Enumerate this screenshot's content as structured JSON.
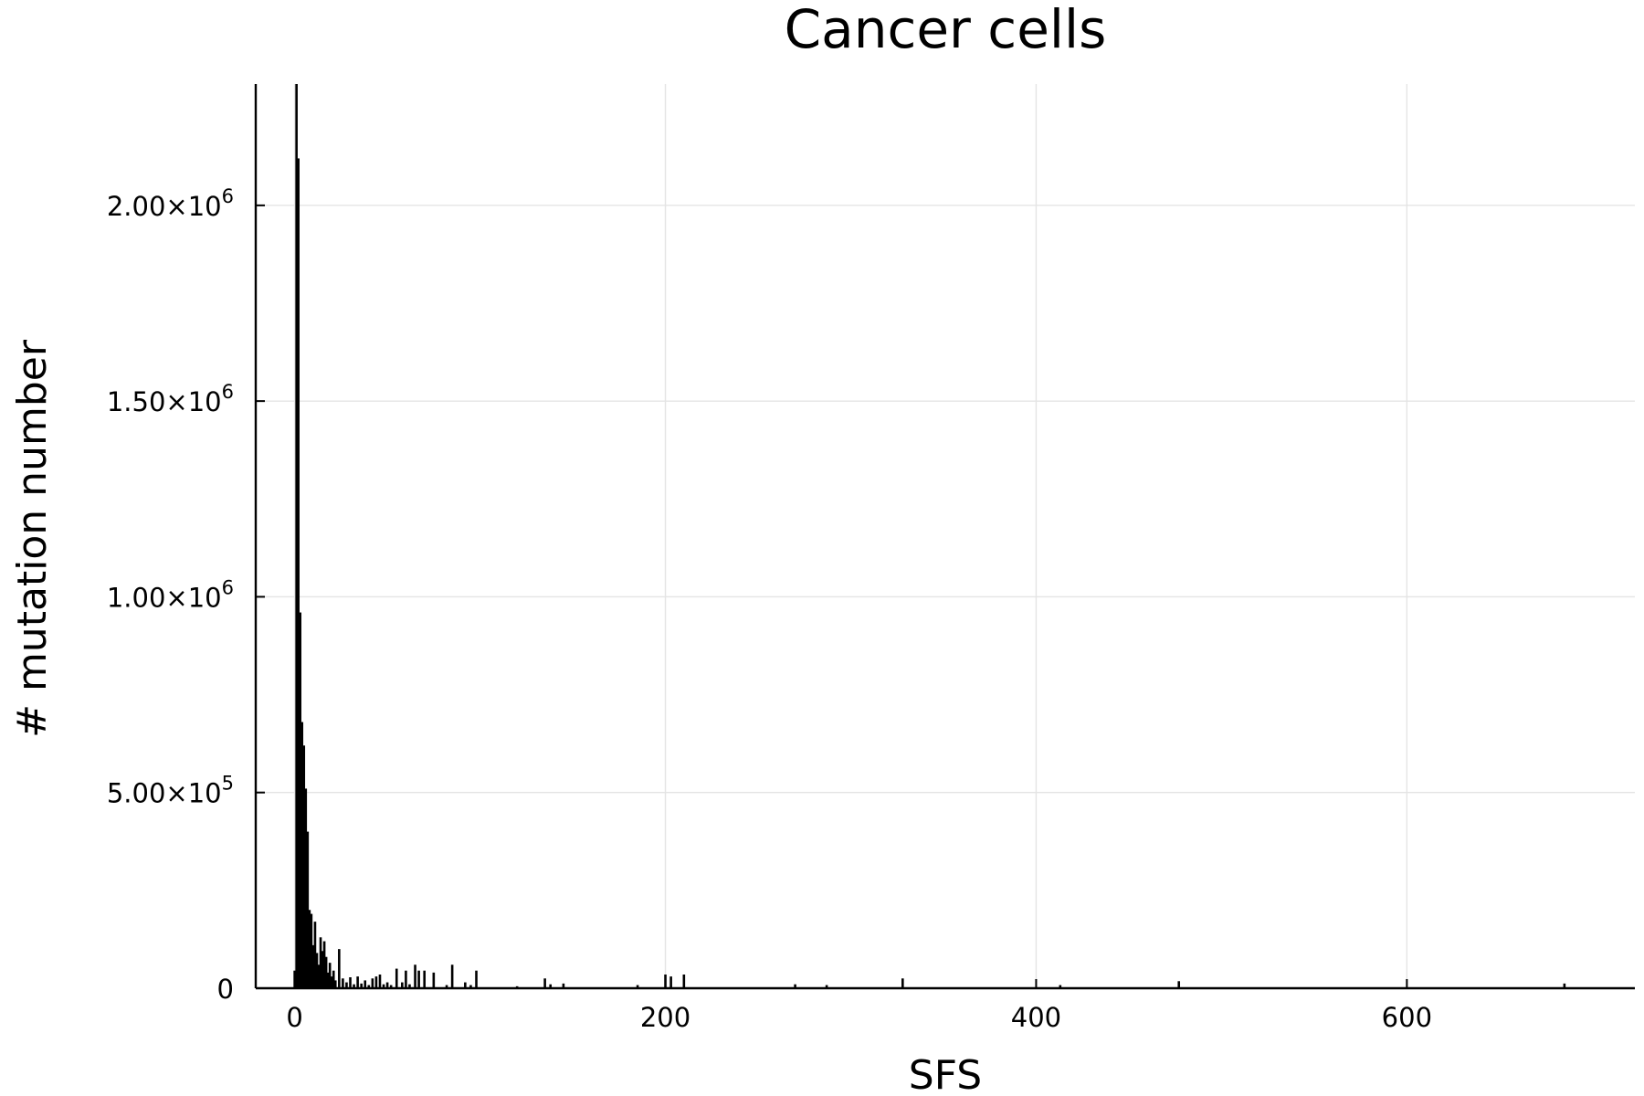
{
  "chart_data": {
    "type": "bar",
    "title": "Cancer cells",
    "xlabel": "SFS",
    "ylabel": "# mutation number",
    "xlim": [
      -21,
      723
    ],
    "ylim": [
      0,
      2310000
    ],
    "grid": true,
    "legend": "none",
    "bar_color": "#000000",
    "x_ticks": [
      {
        "value": 0,
        "label": "0"
      },
      {
        "value": 200,
        "label": "200"
      },
      {
        "value": 400,
        "label": "400"
      },
      {
        "value": 600,
        "label": "600"
      }
    ],
    "y_ticks": [
      {
        "value": 0,
        "mantissa": "0",
        "exponent": ""
      },
      {
        "value": 500000,
        "mantissa": "5.00×10",
        "exponent": "5"
      },
      {
        "value": 1000000,
        "mantissa": "1.00×10",
        "exponent": "6"
      },
      {
        "value": 1500000,
        "mantissa": "1.50×10",
        "exponent": "6"
      },
      {
        "value": 2000000,
        "mantissa": "2.00×10",
        "exponent": "6"
      }
    ],
    "series": [
      {
        "x": [
          0,
          1,
          2,
          3,
          4,
          5,
          6,
          7,
          8,
          9,
          10,
          11,
          12,
          13,
          14,
          15,
          16,
          17,
          18,
          19,
          20,
          21,
          22,
          24,
          26,
          28,
          30,
          32,
          34,
          36,
          38,
          40,
          42,
          44,
          46,
          48,
          50,
          52,
          55,
          58,
          60,
          62,
          65,
          67,
          70,
          75,
          82,
          85,
          92,
          95,
          98,
          120,
          135,
          138,
          145,
          185,
          200,
          203,
          210,
          270,
          287,
          328,
          413,
          477,
          685
        ],
        "values": [
          45000,
          2310000,
          2120000,
          960000,
          680000,
          620000,
          510000,
          400000,
          200000,
          190000,
          110000,
          170000,
          90000,
          60000,
          130000,
          95000,
          120000,
          80000,
          40000,
          65000,
          30000,
          45000,
          20000,
          100000,
          25000,
          15000,
          28000,
          10000,
          30000,
          12000,
          20000,
          8000,
          25000,
          30000,
          35000,
          10000,
          15000,
          8000,
          50000,
          15000,
          45000,
          10000,
          60000,
          45000,
          45000,
          40000,
          8000,
          60000,
          15000,
          8000,
          45000,
          5000,
          25000,
          10000,
          12000,
          8000,
          35000,
          30000,
          35000,
          10000,
          8000,
          25000,
          8000,
          18000,
          12000
        ]
      }
    ]
  }
}
